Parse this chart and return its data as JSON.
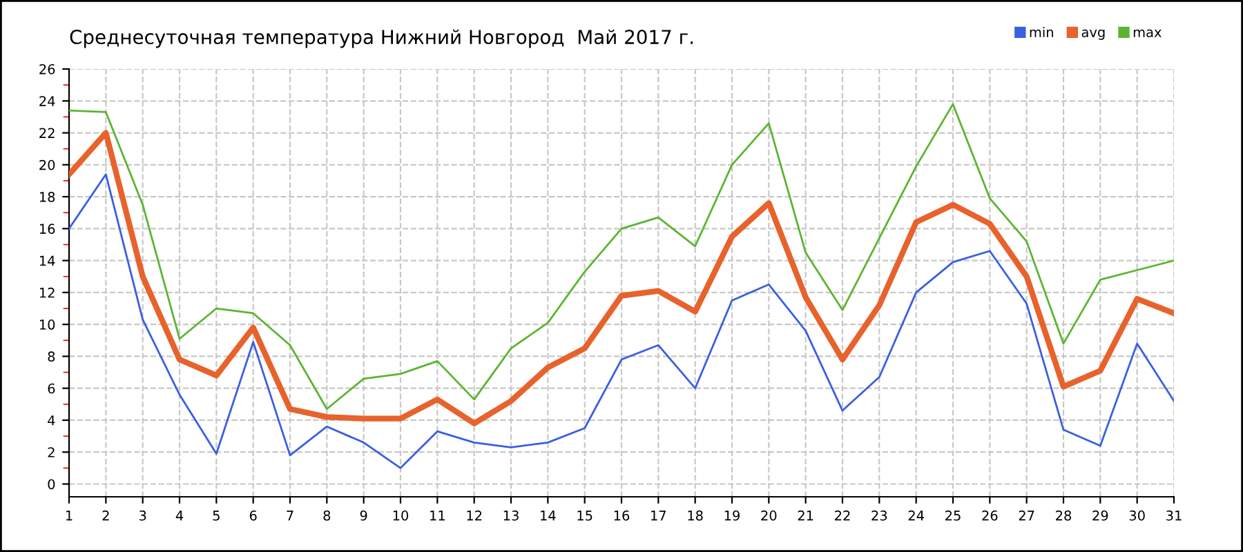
{
  "chart_data": {
    "type": "line",
    "title": "Среднесуточная температура Нижний Новгород  Май 2017 г.",
    "x": [
      1,
      2,
      3,
      4,
      5,
      6,
      7,
      8,
      9,
      10,
      11,
      12,
      13,
      14,
      15,
      16,
      17,
      18,
      19,
      20,
      21,
      22,
      23,
      24,
      25,
      26,
      27,
      28,
      29,
      30,
      31
    ],
    "series": [
      {
        "name": "min",
        "color": "#3a5fe0",
        "values": [
          16.0,
          19.4,
          10.3,
          5.6,
          1.9,
          8.9,
          1.8,
          3.6,
          2.6,
          1.0,
          3.3,
          2.6,
          2.3,
          2.6,
          3.5,
          7.8,
          8.7,
          6.0,
          11.5,
          12.5,
          9.6,
          4.6,
          6.7,
          12.0,
          13.9,
          14.6,
          11.3,
          3.4,
          2.4,
          8.8,
          5.2
        ]
      },
      {
        "name": "avg",
        "color": "#e8622c",
        "values": [
          19.4,
          22.0,
          13.0,
          7.8,
          6.8,
          9.8,
          4.7,
          4.2,
          4.1,
          4.1,
          5.3,
          3.8,
          5.2,
          7.3,
          8.5,
          11.8,
          12.1,
          10.8,
          15.5,
          17.6,
          11.7,
          7.8,
          11.2,
          16.4,
          17.5,
          16.3,
          13.0,
          6.1,
          7.1,
          11.6,
          10.7
        ]
      },
      {
        "name": "max",
        "color": "#5ab531",
        "values": [
          23.4,
          23.3,
          17.5,
          9.1,
          11.0,
          10.7,
          8.7,
          4.7,
          6.6,
          6.9,
          7.7,
          5.3,
          8.5,
          10.1,
          13.3,
          16.0,
          16.7,
          14.9,
          20.0,
          22.6,
          14.5,
          10.9,
          15.4,
          19.9,
          23.8,
          17.9,
          15.2,
          8.8,
          12.8,
          13.4,
          14.0
        ]
      }
    ],
    "xlim": [
      1,
      31
    ],
    "xticks": [
      1,
      2,
      3,
      4,
      5,
      6,
      7,
      8,
      9,
      10,
      11,
      12,
      13,
      14,
      15,
      16,
      17,
      18,
      19,
      20,
      21,
      22,
      23,
      24,
      25,
      26,
      27,
      28,
      29,
      30,
      31
    ],
    "ylim": [
      -0.8,
      26
    ],
    "yticks": [
      0,
      2,
      4,
      6,
      8,
      10,
      12,
      14,
      16,
      18,
      20,
      22,
      24,
      26
    ],
    "grid": true,
    "legend": "top right",
    "marker": "none",
    "line_style": "solid"
  }
}
